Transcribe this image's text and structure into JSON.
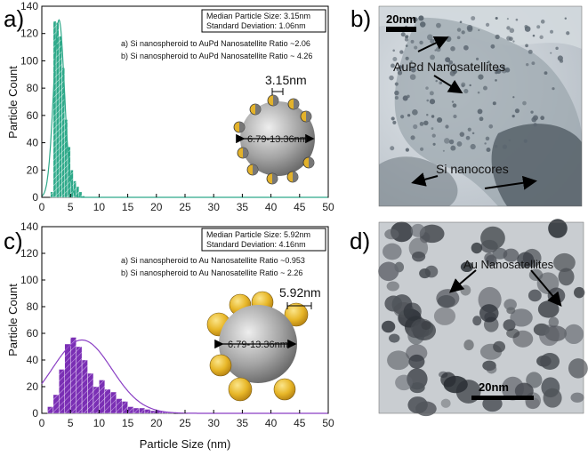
{
  "panels": {
    "a": "a)",
    "b": "b)",
    "c": "c)",
    "d": "d)"
  },
  "colors": {
    "hist_a": "#2fa98a",
    "hist_c": "#7a2fb4",
    "fit_a": "#2fa98a",
    "fit_c": "#8a3fc4",
    "gold": "#e7b628"
  },
  "chart_data": [
    {
      "type": "bar",
      "panel": "a",
      "xlabel": "",
      "ylabel": "Particle Count",
      "xlim": [
        0,
        50
      ],
      "ylim": [
        0,
        140
      ],
      "xticks": [
        0,
        5,
        10,
        15,
        20,
        25,
        30,
        35,
        40,
        45,
        50
      ],
      "yticks": [
        0,
        20,
        40,
        60,
        80,
        100,
        120,
        140
      ],
      "bin_width": 0.5,
      "bins_x": [
        1.5,
        2,
        2.5,
        3,
        3.5,
        4,
        4.5,
        5,
        5.5,
        6,
        6.5,
        7
      ],
      "values": [
        4,
        129,
        128,
        118,
        95,
        57,
        37,
        20,
        12,
        8,
        4,
        1
      ],
      "fit": {
        "type": "gaussian",
        "center": 3.0,
        "sigma": 0.95,
        "amplitude": 130
      },
      "stats_box": [
        "Median Particle Size: 3.15nm",
        "Standard Deviation: 1.06nm"
      ],
      "annotations": [
        "a) Si nanospheroid to AuPd Nanosatellite Ratio ~2.06",
        "b) Si nanospheroid to AuPd Nanosatellite Ratio ~ 4.26"
      ],
      "inset": {
        "satellite_size": "3.15nm",
        "core_size": "6.79-13.36nm"
      }
    },
    {
      "type": "bar",
      "panel": "c",
      "xlabel": "Particle Size (nm)",
      "ylabel": "Particle Count",
      "xlim": [
        0,
        50
      ],
      "ylim": [
        0,
        140
      ],
      "xticks": [
        0,
        5,
        10,
        15,
        20,
        25,
        30,
        35,
        40,
        45,
        50
      ],
      "yticks": [
        0,
        20,
        40,
        60,
        80,
        100,
        120,
        140
      ],
      "bin_width": 1,
      "bins_x": [
        1,
        2,
        3,
        4,
        5,
        6,
        7,
        8,
        9,
        10,
        11,
        12,
        13,
        14,
        15,
        16,
        17,
        18,
        19,
        20,
        21,
        22
      ],
      "values": [
        5,
        14,
        33,
        52,
        57,
        50,
        40,
        30,
        20,
        25,
        18,
        16,
        11,
        9,
        5,
        4,
        4,
        3,
        2,
        2,
        1,
        1
      ],
      "fit": {
        "type": "gaussian",
        "center": 7.0,
        "sigma": 5.2,
        "amplitude": 55
      },
      "stats_box": [
        "Median Particle Size: 5.92nm",
        "Standard Deviation: 4.16nm"
      ],
      "annotations": [
        "a) Si nanospheroid to Au Nanosatellite Ratio ~0.953",
        "b) Si nanospheroid to Au Nanosatellite Ratio ~ 2.26"
      ],
      "inset": {
        "satellite_size": "5.92nm",
        "core_size": "6.79-13.36nm"
      }
    }
  ],
  "tem_b": {
    "scale": "20nm",
    "labels": [
      "AuPd Nanosatellites",
      "Si nanocores"
    ]
  },
  "tem_d": {
    "scale": "20nm",
    "labels": [
      "Au Nanosatellites"
    ]
  }
}
